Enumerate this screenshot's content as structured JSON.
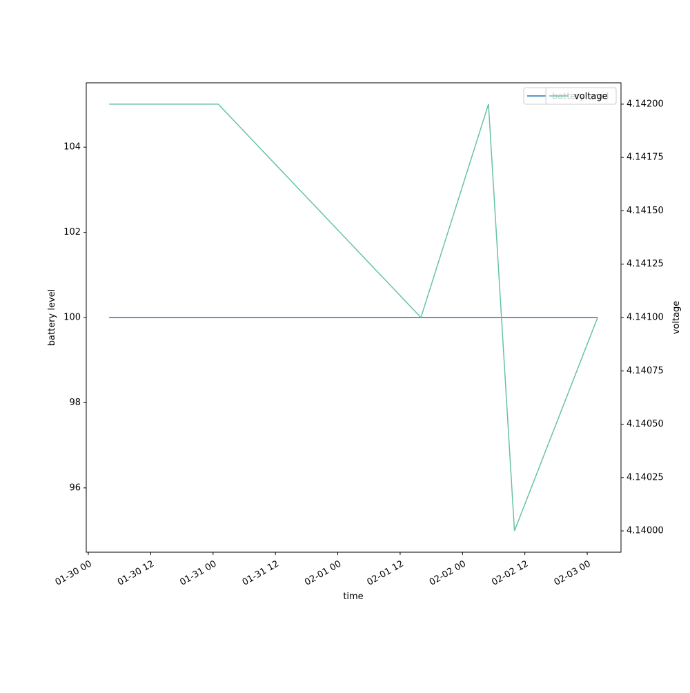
{
  "chart_data": {
    "type": "line",
    "x_label": "time",
    "y_label": "battery level",
    "y2_label": "voltage",
    "x": [
      "01-30 04",
      "01-31 01",
      "02-01 16",
      "02-02 05",
      "02-02 10",
      "02-03 02"
    ],
    "series": [
      {
        "name": "battery level",
        "color": "#1f77b4",
        "values": [
          100,
          100,
          100,
          100,
          100,
          100
        ]
      },
      {
        "name": "voltage",
        "color": "#66c2a5",
        "axis": "y2",
        "values": [
          4.142,
          4.142,
          4.141,
          4.142,
          4.14,
          4.141
        ]
      }
    ],
    "xlim": [
      "01-29 23:36",
      "02-03 06:30"
    ],
    "xticks": [
      "01-30 00",
      "01-30 12",
      "01-31 00",
      "01-31 12",
      "02-01 00",
      "02-01 12",
      "02-02 00",
      "02-02 12",
      "02-03 00"
    ],
    "ylim": [
      94.49,
      105.51
    ],
    "yticks": [
      96,
      98,
      100,
      102,
      104
    ],
    "y2lim": [
      4.1399,
      4.1421
    ],
    "y2ticks": [
      {
        "value": 4.14,
        "label": "4.14000"
      },
      {
        "value": 4.14025,
        "label": "4.14025"
      },
      {
        "value": 4.1405,
        "label": "4.14050"
      },
      {
        "value": 4.14075,
        "label": "4.14075"
      },
      {
        "value": 4.141,
        "label": "4.14100"
      },
      {
        "value": 4.14125,
        "label": "4.14125"
      },
      {
        "value": 4.1415,
        "label": "4.14150"
      },
      {
        "value": 4.14175,
        "label": "4.14175"
      },
      {
        "value": 4.142,
        "label": "4.14200"
      }
    ],
    "legend": "upper right"
  }
}
